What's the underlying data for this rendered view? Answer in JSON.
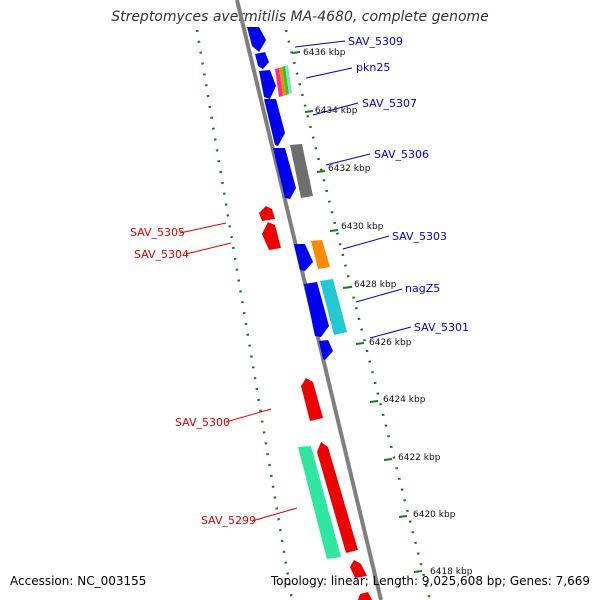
{
  "title": "Streptomyces avermitilis MA-4680, complete genome",
  "footer": {
    "accession": "Accession: NC_003155",
    "summary": "Topology: linear; Length: 9,025,608 bp; Genes: 7,669"
  },
  "colors": {
    "forward_label": "#0000cc",
    "reverse_label": "#dd0000",
    "axis": "#7f7f7f",
    "tick_dots": "#1a7a1a"
  },
  "ticks": [
    {
      "label": "6436 kbp"
    },
    {
      "label": "6434 kbp"
    },
    {
      "label": "6432 kbp"
    },
    {
      "label": "6430 kbp"
    },
    {
      "label": "6428 kbp"
    },
    {
      "label": "6426 kbp"
    },
    {
      "label": "6424 kbp"
    },
    {
      "label": "6422 kbp"
    },
    {
      "label": "6420 kbp"
    },
    {
      "label": "6418 kbp"
    }
  ],
  "gene_labels": [
    {
      "name": "SAV_5309",
      "strand": "forward"
    },
    {
      "name": "pkn25",
      "strand": "forward"
    },
    {
      "name": "SAV_5307",
      "strand": "forward"
    },
    {
      "name": "SAV_5306",
      "strand": "forward"
    },
    {
      "name": "SAV_5305",
      "strand": "reverse"
    },
    {
      "name": "SAV_5304",
      "strand": "reverse"
    },
    {
      "name": "SAV_5303",
      "strand": "forward"
    },
    {
      "name": "nagZ5",
      "strand": "forward"
    },
    {
      "name": "SAV_5301",
      "strand": "forward"
    },
    {
      "name": "SAV_5300",
      "strand": "reverse"
    },
    {
      "name": "SAV_5299",
      "strand": "reverse"
    }
  ]
}
